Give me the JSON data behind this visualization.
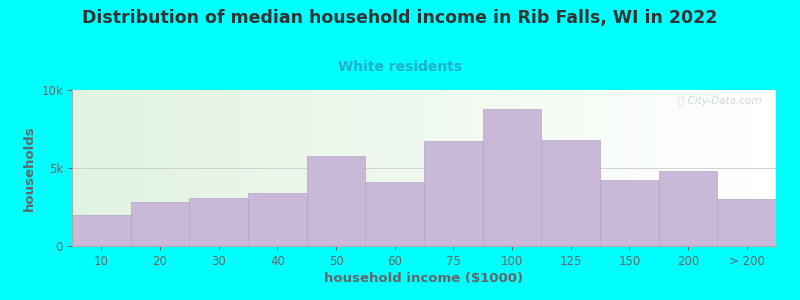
{
  "title": "Distribution of median household income in Rib Falls, WI in 2022",
  "subtitle": "White residents",
  "xlabel": "household income ($1000)",
  "ylabel": "households",
  "categories": [
    "10",
    "20",
    "30",
    "40",
    "50",
    "60",
    "75",
    "100",
    "125",
    "150",
    "200",
    "> 200"
  ],
  "values": [
    2000,
    2800,
    3100,
    3400,
    5800,
    4100,
    6700,
    8800,
    6800,
    4200,
    4800,
    3000
  ],
  "bar_color": "#c9b8d8",
  "bar_edge_color": "#b5a5c8",
  "background_color": "#00ffff",
  "plot_bg_color": "#eef5e8",
  "title_color": "#333333",
  "subtitle_color": "#20b0c8",
  "axis_color": "#666666",
  "ylim": [
    0,
    10000
  ],
  "yticks": [
    0,
    5000,
    10000
  ],
  "ytick_labels": [
    "0",
    "5k",
    "10k"
  ],
  "watermark": "Ⓢ City-Data.com",
  "title_fontsize": 12.5,
  "subtitle_fontsize": 10,
  "label_fontsize": 8.5
}
